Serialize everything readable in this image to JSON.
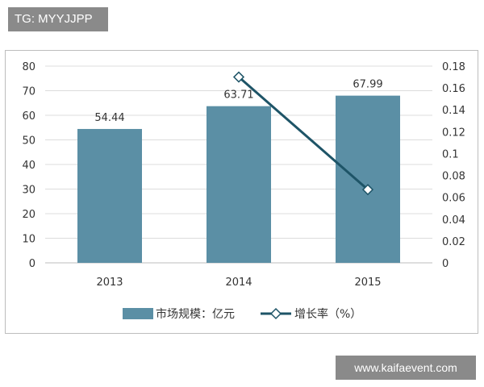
{
  "badge": {
    "text": "TG: MYYJJPP"
  },
  "watermark": {
    "text": "www.kaifaevent.com"
  },
  "colors": {
    "bar": "#5b8fa5",
    "line": "#1e5467",
    "marker_fill": "#ffffff",
    "grid": "#dcdcdc",
    "axis": "#bdbdbd"
  },
  "chart_data": {
    "type": "bar+line",
    "categories": [
      "2013",
      "2014",
      "2015"
    ],
    "series": [
      {
        "name": "市场规模：亿元",
        "type": "bar",
        "axis": "left",
        "values": [
          54.44,
          63.71,
          67.99
        ],
        "data_labels": [
          "54.44",
          "63.71",
          "67.99"
        ]
      },
      {
        "name": "增长率（%）",
        "type": "line",
        "axis": "right",
        "values": [
          null,
          0.17,
          0.067
        ]
      }
    ],
    "y_left": {
      "ylim": [
        0,
        80
      ],
      "ticks": [
        "0",
        "10",
        "20",
        "30",
        "40",
        "50",
        "60",
        "70",
        "80"
      ]
    },
    "y_right": {
      "ylim": [
        0,
        0.18
      ],
      "ticks": [
        "0",
        "0.02",
        "0.04",
        "0.06",
        "0.08",
        "0.1",
        "0.12",
        "0.14",
        "0.16",
        "0.18"
      ]
    },
    "grid": true,
    "legend": "bottom"
  }
}
